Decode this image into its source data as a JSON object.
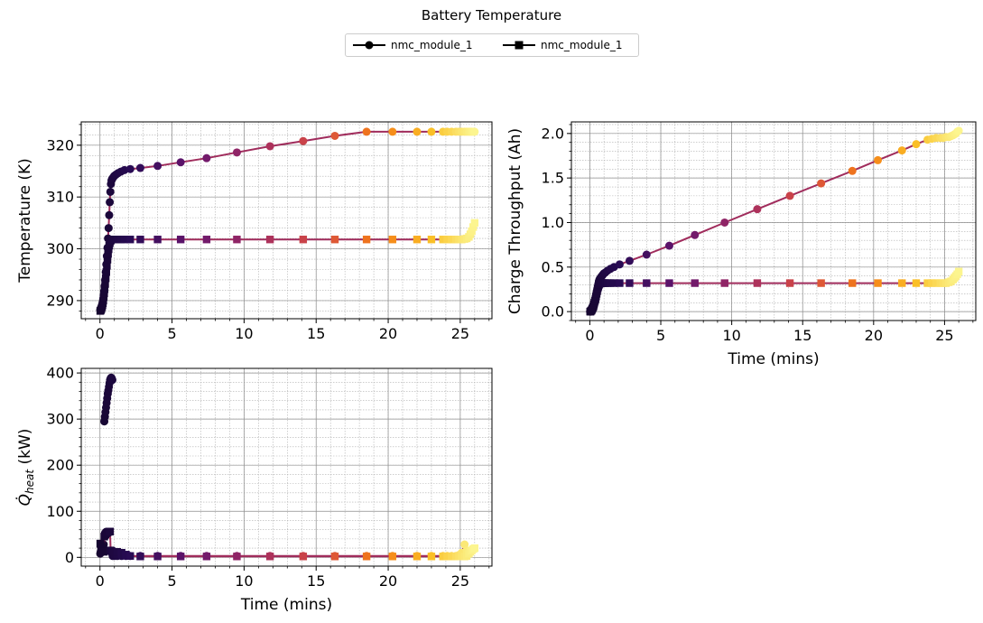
{
  "figure": {
    "title": "Battery Temperature",
    "legend": [
      {
        "label": "nmc_module_1",
        "marker": "circle"
      },
      {
        "label": "nmc_module_1",
        "marker": "square"
      }
    ],
    "colors": {
      "line": "#a02c5c",
      "legend_line": "#000000",
      "grid_major": "#8c8c8c",
      "grid_minor": "#b0b0b0",
      "colormap": "inferno"
    }
  },
  "chart_data": [
    {
      "type": "line",
      "title": "",
      "xlabel": "",
      "ylabel": "Temperature (K)",
      "xlim": [
        -1.3,
        27.2
      ],
      "ylim": [
        286.5,
        324.5
      ],
      "xticks": [
        0,
        5,
        10,
        15,
        20,
        25
      ],
      "yticks": [
        290,
        300,
        310,
        320
      ],
      "grid": true,
      "minor_grid": true,
      "series": [
        {
          "label": "nmc_module_1",
          "marker": "circle",
          "x": [
            0.02,
            0.05,
            0.08,
            0.11,
            0.14,
            0.17,
            0.2,
            0.23,
            0.26,
            0.29,
            0.32,
            0.36,
            0.4,
            0.44,
            0.48,
            0.52,
            0.56,
            0.6,
            0.64,
            0.68,
            0.72,
            0.76,
            0.8,
            0.85,
            0.9,
            0.95,
            1.0,
            1.1,
            1.25,
            1.45,
            1.7,
            2.1,
            2.8,
            4.0,
            5.6,
            7.4,
            9.5,
            11.8,
            14.1,
            16.3,
            18.5,
            20.3,
            22.0,
            23.0,
            23.8,
            24.1,
            24.4,
            24.7,
            24.9,
            25.1,
            25.3,
            25.45,
            25.6,
            25.7,
            25.8,
            25.9,
            26.0
          ],
          "y": [
            288.2,
            288.3,
            288.5,
            288.7,
            289.0,
            289.3,
            289.7,
            290.3,
            291.0,
            291.8,
            292.8,
            294.0,
            295.5,
            297.0,
            298.6,
            300.2,
            302.0,
            304.0,
            306.5,
            309.0,
            311.0,
            312.5,
            313.2,
            313.5,
            313.7,
            313.9,
            314.1,
            314.3,
            314.6,
            314.9,
            315.2,
            315.4,
            315.6,
            316.0,
            316.7,
            317.5,
            318.6,
            319.8,
            320.8,
            321.8,
            322.6,
            322.6,
            322.6,
            322.6,
            322.6,
            322.6,
            322.6,
            322.6,
            322.6,
            322.6,
            322.6,
            322.6,
            322.6,
            322.6,
            322.6,
            322.6,
            322.6
          ]
        },
        {
          "label": "nmc_module_1",
          "marker": "square",
          "x": [
            0.02,
            0.05,
            0.08,
            0.11,
            0.14,
            0.17,
            0.2,
            0.23,
            0.26,
            0.29,
            0.32,
            0.36,
            0.4,
            0.44,
            0.48,
            0.52,
            0.56,
            0.6,
            0.64,
            0.68,
            0.72,
            0.76,
            0.8,
            0.85,
            0.9,
            0.95,
            1.0,
            1.1,
            1.25,
            1.45,
            1.7,
            2.1,
            2.8,
            4.0,
            5.6,
            7.4,
            9.5,
            11.8,
            14.1,
            16.3,
            18.5,
            20.3,
            22.0,
            23.0,
            23.8,
            24.1,
            24.4,
            24.7,
            24.9,
            25.1,
            25.3,
            25.45,
            25.6,
            25.7,
            25.8,
            25.9,
            26.0
          ],
          "y": [
            288.0,
            288.1,
            288.3,
            288.5,
            288.8,
            289.1,
            289.5,
            290.0,
            290.7,
            291.4,
            292.2,
            293.2,
            294.3,
            295.5,
            296.7,
            297.9,
            299.0,
            299.9,
            300.6,
            301.1,
            301.5,
            301.7,
            301.8,
            301.8,
            301.8,
            301.8,
            301.8,
            301.8,
            301.8,
            301.8,
            301.8,
            301.8,
            301.8,
            301.8,
            301.8,
            301.8,
            301.8,
            301.8,
            301.8,
            301.8,
            301.8,
            301.8,
            301.8,
            301.8,
            301.8,
            301.8,
            301.8,
            301.8,
            301.8,
            301.8,
            301.9,
            302.0,
            302.3,
            302.8,
            303.4,
            304.2,
            305.0
          ]
        }
      ]
    },
    {
      "type": "line",
      "title": "",
      "xlabel": "Time (mins)",
      "ylabel": "Charge Throughput (Ah)",
      "xlim": [
        -1.3,
        27.2
      ],
      "ylim": [
        -0.1,
        2.13
      ],
      "xticks": [
        0,
        5,
        10,
        15,
        20,
        25
      ],
      "yticks": [
        0.0,
        0.5,
        1.0,
        1.5,
        2.0
      ],
      "yticklabels": [
        "0.0",
        "0.5",
        "1.0",
        "1.5",
        "2.0"
      ],
      "grid": true,
      "minor_grid": true,
      "series": [
        {
          "label": "nmc_module_1",
          "marker": "circle",
          "x": [
            0.02,
            0.05,
            0.08,
            0.11,
            0.14,
            0.17,
            0.2,
            0.23,
            0.26,
            0.29,
            0.32,
            0.36,
            0.4,
            0.44,
            0.48,
            0.52,
            0.56,
            0.6,
            0.64,
            0.68,
            0.72,
            0.76,
            0.8,
            0.85,
            0.9,
            0.95,
            1.0,
            1.1,
            1.25,
            1.45,
            1.7,
            2.1,
            2.8,
            4.0,
            5.6,
            7.4,
            9.5,
            11.8,
            14.1,
            16.3,
            18.5,
            20.3,
            22.0,
            23.0,
            23.8,
            24.1,
            24.4,
            24.7,
            24.9,
            25.1,
            25.3,
            25.45,
            25.6,
            25.7,
            25.8,
            25.9,
            26.0
          ],
          "y": [
            0.0,
            0.0,
            0.01,
            0.01,
            0.02,
            0.03,
            0.04,
            0.05,
            0.07,
            0.09,
            0.11,
            0.13,
            0.16,
            0.19,
            0.22,
            0.25,
            0.28,
            0.31,
            0.34,
            0.36,
            0.37,
            0.38,
            0.39,
            0.4,
            0.41,
            0.42,
            0.43,
            0.44,
            0.46,
            0.48,
            0.5,
            0.53,
            0.57,
            0.64,
            0.74,
            0.86,
            1.0,
            1.15,
            1.3,
            1.44,
            1.58,
            1.7,
            1.81,
            1.88,
            1.93,
            1.94,
            1.95,
            1.95,
            1.95,
            1.96,
            1.96,
            1.97,
            1.98,
            1.99,
            2.0,
            2.02,
            2.03
          ]
        },
        {
          "label": "nmc_module_1",
          "marker": "square",
          "x": [
            0.02,
            0.05,
            0.08,
            0.11,
            0.14,
            0.17,
            0.2,
            0.23,
            0.26,
            0.29,
            0.32,
            0.36,
            0.4,
            0.44,
            0.48,
            0.52,
            0.56,
            0.6,
            0.64,
            0.68,
            0.72,
            0.76,
            0.8,
            0.85,
            0.9,
            0.95,
            1.0,
            1.1,
            1.25,
            1.45,
            1.7,
            2.1,
            2.8,
            4.0,
            5.6,
            7.4,
            9.5,
            11.8,
            14.1,
            16.3,
            18.5,
            20.3,
            22.0,
            23.0,
            23.8,
            24.1,
            24.4,
            24.7,
            24.9,
            25.1,
            25.3,
            25.45,
            25.6,
            25.7,
            25.8,
            25.9,
            26.0
          ],
          "y": [
            0.0,
            0.0,
            0.01,
            0.01,
            0.02,
            0.03,
            0.04,
            0.05,
            0.06,
            0.08,
            0.1,
            0.12,
            0.14,
            0.17,
            0.2,
            0.23,
            0.26,
            0.28,
            0.3,
            0.31,
            0.32,
            0.32,
            0.32,
            0.32,
            0.32,
            0.32,
            0.32,
            0.32,
            0.32,
            0.32,
            0.32,
            0.32,
            0.32,
            0.32,
            0.32,
            0.32,
            0.32,
            0.32,
            0.32,
            0.32,
            0.32,
            0.32,
            0.32,
            0.32,
            0.32,
            0.32,
            0.32,
            0.32,
            0.32,
            0.32,
            0.33,
            0.34,
            0.36,
            0.38,
            0.4,
            0.42,
            0.45
          ]
        }
      ]
    },
    {
      "type": "line",
      "title": "",
      "xlabel": "Time (mins)",
      "ylabel": "Q̇_heat (kW)",
      "ylabel_parts": {
        "symbol": "Q̇",
        "subscript": "heat",
        "unit": " (kW)"
      },
      "xlim": [
        -1.3,
        27.2
      ],
      "ylim": [
        -19,
        410
      ],
      "xticks": [
        0,
        5,
        10,
        15,
        20,
        25
      ],
      "yticks": [
        0,
        100,
        200,
        300,
        400
      ],
      "grid": true,
      "minor_grid": true,
      "series": [
        {
          "label": "nmc_module_1",
          "marker": "circle",
          "x": [
            0.02,
            0.05,
            0.08,
            0.11,
            0.14,
            0.17,
            0.2,
            0.23,
            0.26,
            0.3,
            0.34,
            0.38,
            0.42,
            0.46,
            0.5,
            0.54,
            0.58,
            0.62,
            0.66,
            0.7,
            0.74,
            0.78,
            0.82,
            0.86
          ],
          "y": [
            8,
            12,
            15,
            18,
            20,
            22,
            24,
            26,
            28,
            295,
            305,
            315,
            325,
            335,
            345,
            355,
            362,
            370,
            378,
            385,
            388,
            390,
            388,
            385
          ],
          "y_after_jump": {
            "x": [
              0.88,
              1.0,
              1.2,
              1.5,
              1.8,
              2.1,
              2.8,
              4.0,
              5.6,
              7.4,
              9.5,
              11.8,
              14.1,
              16.3,
              18.5,
              20.3,
              22.0,
              23.0,
              23.8,
              24.1,
              24.4,
              24.7,
              24.9,
              25.1,
              25.3,
              25.45
            ],
            "y": [
              3,
              3,
              3,
              3,
              3,
              3,
              3,
              3,
              3,
              3,
              3,
              3,
              3,
              3,
              3,
              3,
              3,
              3,
              3,
              3,
              3,
              3,
              5,
              10,
              28,
              15
            ]
          }
        },
        {
          "label": "nmc_module_1",
          "marker": "square",
          "x": [
            0.02,
            0.05,
            0.08,
            0.11,
            0.14,
            0.17,
            0.2,
            0.23,
            0.26,
            0.3,
            0.34,
            0.38,
            0.42,
            0.46,
            0.5,
            0.54,
            0.58,
            0.62,
            0.66,
            0.7,
            0.74,
            0.78,
            0.82,
            0.86,
            0.9,
            1.0,
            1.2,
            1.5,
            1.8,
            2.1,
            2.8,
            4.0,
            5.6,
            7.4,
            9.5,
            11.8,
            14.1,
            16.3,
            18.5,
            20.3,
            22.0,
            23.0,
            23.8,
            24.1,
            24.4,
            24.7,
            24.9,
            25.1,
            25.3,
            25.45,
            25.6,
            25.7,
            25.8,
            25.9,
            26.0
          ],
          "y": [
            30,
            28,
            25,
            22,
            20,
            18,
            16,
            14,
            12,
            45,
            48,
            50,
            52,
            53,
            54,
            55,
            55,
            56,
            56,
            56,
            15,
            14,
            13,
            12,
            12,
            12,
            12,
            10,
            6,
            3,
            2,
            2,
            2,
            2,
            2,
            2,
            2,
            2,
            2,
            2,
            2,
            2,
            2,
            2,
            2,
            2,
            2,
            2,
            2,
            3,
            8,
            12,
            15,
            18,
            20
          ]
        }
      ]
    }
  ]
}
